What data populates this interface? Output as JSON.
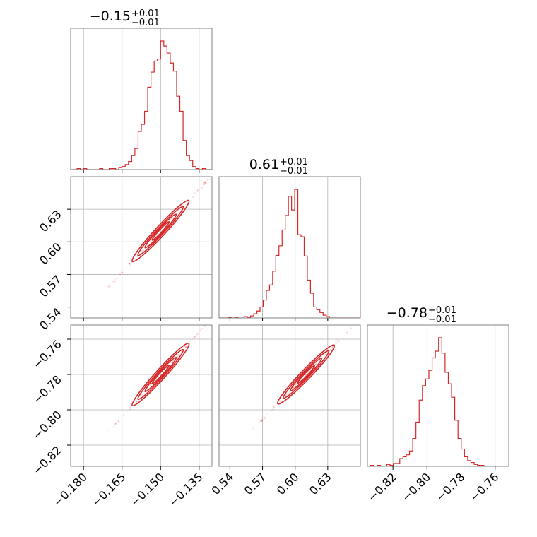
{
  "figure": {
    "type": "corner-plot",
    "line_color": "#d62728",
    "axis_color": "#808080",
    "grid_color": "#b0b0b0",
    "grid": true
  },
  "chart_data": [
    {
      "type": "histogram",
      "panel": "0,0",
      "title": {
        "value": "−0.15",
        "plus": "+0.01",
        "minus": "−0.01"
      },
      "x_range": [
        -0.185,
        -0.13
      ],
      "bin_width": 0.00125,
      "bin_start": -0.185,
      "counts": [
        0,
        0,
        1,
        0,
        1,
        0,
        0,
        0,
        0,
        1,
        0,
        0,
        1,
        1,
        0,
        2,
        3,
        5,
        8,
        14,
        21,
        38,
        45,
        58,
        82,
        97,
        108,
        110,
        128,
        123,
        116,
        106,
        98,
        73,
        58,
        29,
        14,
        9,
        3,
        1,
        0,
        1,
        0,
        0
      ],
      "max_count": 128
    },
    {
      "type": "scatter-contour",
      "panel": "1,0",
      "x_range": [
        -0.185,
        -0.13
      ],
      "y_range": [
        0.53,
        0.66
      ],
      "y_ticks": [
        "0.54",
        "0.57",
        "0.60",
        "0.63"
      ],
      "y_tick_values": [
        0.54,
        0.57,
        0.6,
        0.63
      ],
      "corr": {
        "x0": -0.15,
        "y0": 0.61,
        "slope": 2.55
      }
    },
    {
      "type": "histogram",
      "panel": "1,1",
      "title": {
        "value": "0.61",
        "plus": "+0.01",
        "minus": "−0.01"
      },
      "x_range": [
        0.53,
        0.66
      ],
      "bin_width": 0.0029,
      "bin_start": 0.53,
      "counts": [
        0,
        0,
        0,
        1,
        0,
        1,
        0,
        0,
        2,
        1,
        3,
        6,
        10,
        16,
        26,
        40,
        48,
        68,
        91,
        105,
        128,
        149,
        177,
        157,
        187,
        121,
        118,
        90,
        55,
        36,
        16,
        12,
        8,
        4,
        2,
        0,
        0,
        0,
        0,
        0,
        0,
        0,
        0,
        0,
        0
      ],
      "max_count": 187
    },
    {
      "type": "scatter-contour",
      "panel": "2,0",
      "x_range": [
        -0.185,
        -0.13
      ],
      "y_range": [
        -0.832,
        -0.752
      ],
      "y_ticks": [
        "−0.82",
        "−0.80",
        "−0.78",
        "−0.76"
      ],
      "y_tick_values": [
        -0.82,
        -0.8,
        -0.78,
        -0.76
      ],
      "corr": {
        "x0": -0.15,
        "y0": -0.78,
        "slope": 1.6
      }
    },
    {
      "type": "scatter-contour",
      "panel": "2,1",
      "x_range": [
        0.53,
        0.66
      ],
      "y_range": [
        -0.832,
        -0.752
      ],
      "corr": {
        "x0": 0.61,
        "y0": -0.78,
        "slope": 0.64
      }
    },
    {
      "type": "histogram",
      "panel": "2,2",
      "title": {
        "value": "−0.78",
        "plus": "+0.01",
        "minus": "−0.01"
      },
      "x_range": [
        -0.835,
        -0.752
      ],
      "bin_width": 0.0019,
      "bin_start": -0.835,
      "counts": [
        0,
        1,
        0,
        1,
        0,
        0,
        2,
        1,
        3,
        3,
        8,
        10,
        12,
        16,
        29,
        46,
        69,
        84,
        91,
        100,
        113,
        120,
        134,
        118,
        98,
        86,
        72,
        48,
        29,
        18,
        10,
        6,
        4,
        2,
        1,
        1,
        0,
        0,
        0,
        0,
        0,
        0,
        0
      ],
      "max_count": 134
    }
  ],
  "axes": {
    "x_col0_ticks": [
      "−0.180",
      "−0.165",
      "−0.150",
      "−0.135"
    ],
    "x_col0_values": [
      -0.18,
      -0.165,
      -0.15,
      -0.135
    ],
    "x_col1_ticks": [
      "0.54",
      "0.57",
      "0.60",
      "0.63"
    ],
    "x_col1_values": [
      0.54,
      0.57,
      0.6,
      0.63
    ],
    "x_col2_ticks": [
      "−0.82",
      "−0.80",
      "−0.78",
      "−0.76"
    ],
    "x_col2_values": [
      -0.82,
      -0.8,
      -0.78,
      -0.76
    ]
  }
}
